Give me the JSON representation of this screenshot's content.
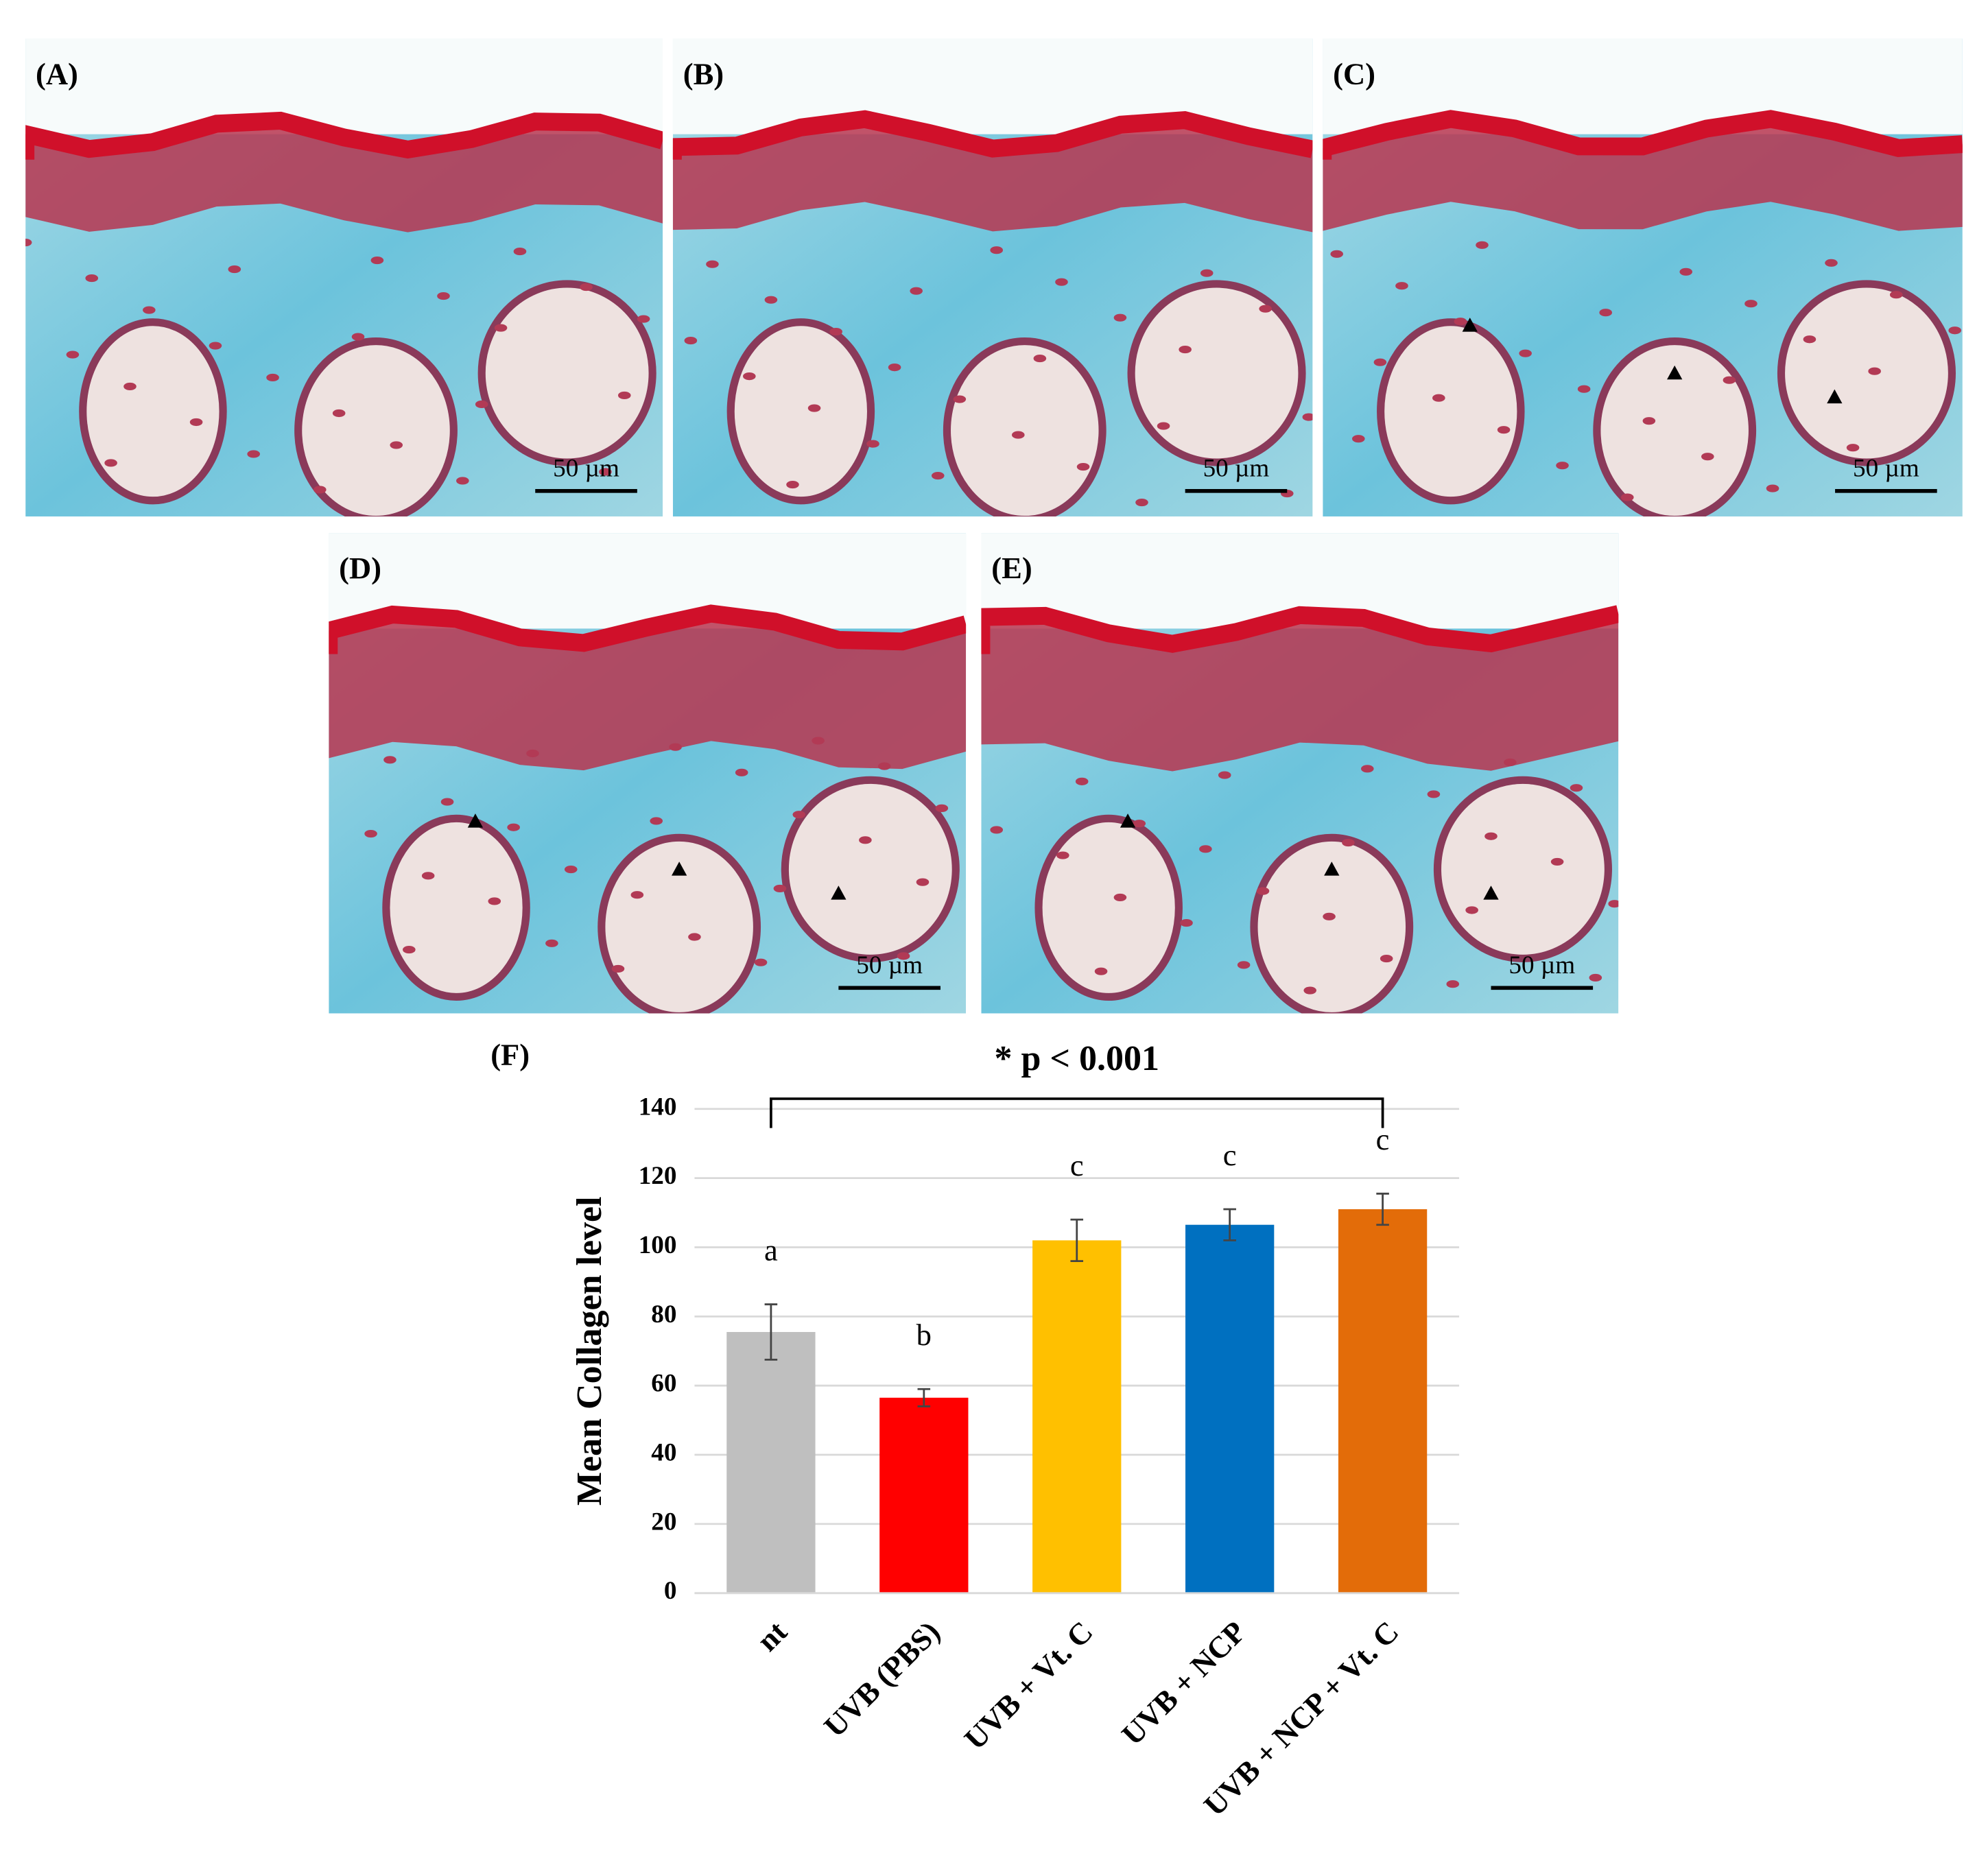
{
  "panels": [
    {
      "label": "(A)",
      "scale": "50 µm"
    },
    {
      "label": "(B)",
      "scale": "50 µm"
    },
    {
      "label": "(C)",
      "scale": "50 µm"
    },
    {
      "label": "(D)",
      "scale": "50 µm"
    },
    {
      "label": "(E)",
      "scale": "50 µm"
    }
  ],
  "chart_data": {
    "type": "bar",
    "panel_label": "(F)",
    "annotation": "* p < 0.001",
    "y_label": "Mean Collagen level",
    "categories": [
      "nt",
      "UVB (PBS)",
      "UVB + Vt. C",
      "UVB + NCP",
      "UVB + NCP + Vt. C"
    ],
    "values": [
      75.5,
      56.5,
      102,
      106.5,
      111
    ],
    "errors": [
      8,
      2.5,
      6,
      4.5,
      4.5
    ],
    "significance": [
      "a",
      "b",
      "c",
      "c",
      "c"
    ],
    "colors": [
      "#bfbfbf",
      "#ff0000",
      "#ffc000",
      "#0070c0",
      "#e36c09"
    ],
    "ylim": [
      0,
      140
    ],
    "yticks": [
      0,
      20,
      40,
      60,
      80,
      100,
      120,
      140
    ],
    "grid": true
  }
}
